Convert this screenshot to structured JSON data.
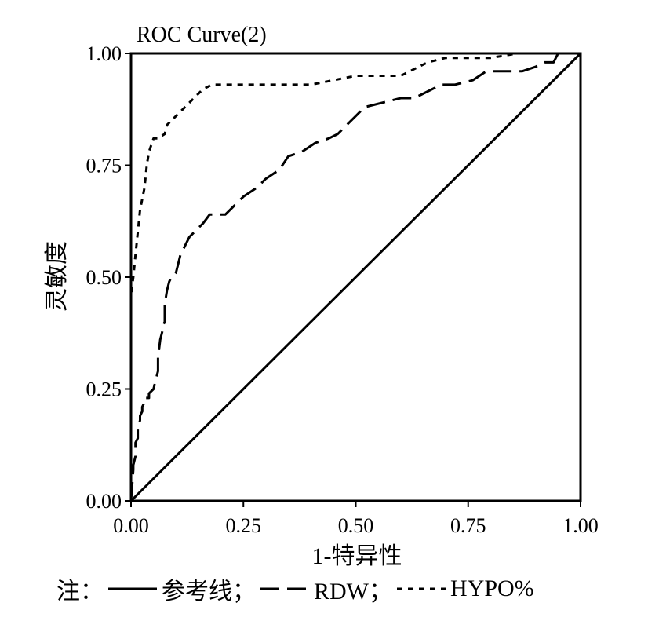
{
  "chart_data": {
    "type": "line",
    "title": "ROC Curve(2)",
    "xlabel": "1-特异性",
    "ylabel": "灵敏度",
    "xlim": [
      0,
      1
    ],
    "ylim": [
      0,
      1
    ],
    "xticks": [
      "0.00",
      "0.25",
      "0.50",
      "0.75",
      "1.00"
    ],
    "yticks": [
      "0.00",
      "0.25",
      "0.50",
      "0.75",
      "1.00"
    ],
    "series": [
      {
        "name": "参考线",
        "style": "solid",
        "x": [
          0,
          1
        ],
        "y": [
          0,
          1
        ]
      },
      {
        "name": "RDW",
        "style": "dashed",
        "x": [
          0.0,
          0.005,
          0.005,
          0.01,
          0.01,
          0.015,
          0.015,
          0.02,
          0.02,
          0.025,
          0.025,
          0.03,
          0.03,
          0.04,
          0.04,
          0.05,
          0.055,
          0.06,
          0.06,
          0.065,
          0.07,
          0.07,
          0.075,
          0.075,
          0.08,
          0.085,
          0.09,
          0.1,
          0.105,
          0.11,
          0.12,
          0.13,
          0.14,
          0.15,
          0.16,
          0.175,
          0.19,
          0.21,
          0.23,
          0.25,
          0.28,
          0.3,
          0.33,
          0.35,
          0.38,
          0.41,
          0.44,
          0.46,
          0.48,
          0.5,
          0.52,
          0.56,
          0.6,
          0.63,
          0.67,
          0.69,
          0.72,
          0.76,
          0.79,
          0.81,
          0.83,
          0.87,
          0.9,
          0.92,
          0.94,
          0.95,
          1.0
        ],
        "y": [
          0.0,
          0.07,
          0.08,
          0.1,
          0.13,
          0.14,
          0.16,
          0.18,
          0.19,
          0.2,
          0.21,
          0.22,
          0.23,
          0.23,
          0.24,
          0.25,
          0.27,
          0.29,
          0.32,
          0.36,
          0.38,
          0.39,
          0.4,
          0.44,
          0.47,
          0.49,
          0.5,
          0.51,
          0.53,
          0.55,
          0.57,
          0.59,
          0.6,
          0.61,
          0.62,
          0.64,
          0.64,
          0.64,
          0.66,
          0.68,
          0.7,
          0.72,
          0.74,
          0.77,
          0.78,
          0.8,
          0.81,
          0.82,
          0.84,
          0.86,
          0.88,
          0.89,
          0.9,
          0.9,
          0.92,
          0.93,
          0.93,
          0.94,
          0.96,
          0.96,
          0.96,
          0.96,
          0.97,
          0.98,
          0.98,
          1.0,
          1.0
        ]
      },
      {
        "name": "HYPO%",
        "style": "dotted",
        "x": [
          0.0,
          0.0,
          0.005,
          0.01,
          0.02,
          0.03,
          0.035,
          0.04,
          0.05,
          0.06,
          0.075,
          0.08,
          0.09,
          0.1,
          0.12,
          0.14,
          0.16,
          0.18,
          0.2,
          0.25,
          0.3,
          0.35,
          0.4,
          0.45,
          0.5,
          0.55,
          0.6,
          0.62,
          0.66,
          0.7,
          0.75,
          0.8,
          0.86,
          0.9,
          0.95,
          1.0
        ],
        "y": [
          0.0,
          0.46,
          0.5,
          0.55,
          0.65,
          0.7,
          0.75,
          0.78,
          0.81,
          0.81,
          0.82,
          0.84,
          0.85,
          0.86,
          0.88,
          0.9,
          0.92,
          0.93,
          0.93,
          0.93,
          0.93,
          0.93,
          0.93,
          0.94,
          0.95,
          0.95,
          0.95,
          0.96,
          0.98,
          0.99,
          0.99,
          0.99,
          1.0,
          1.0,
          1.0,
          1.0
        ]
      }
    ]
  },
  "note": {
    "prefix": "注：",
    "items": [
      {
        "label": "参考线；",
        "style": "solid"
      },
      {
        "label": "RDW；",
        "style": "dashed"
      },
      {
        "label": "HYPO%",
        "style": "dotted"
      }
    ]
  },
  "colors": {
    "line": "#000000",
    "background": "#ffffff"
  }
}
